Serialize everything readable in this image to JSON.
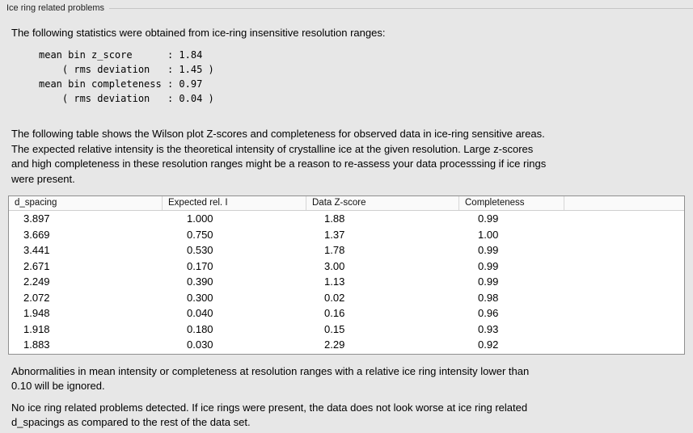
{
  "panel": {
    "title": "Ice ring related problems"
  },
  "intro": "The following statistics were obtained from ice-ring insensitive resolution ranges:",
  "stats_block": "mean bin z_score      : 1.84\n    ( rms deviation   : 1.45 )\nmean bin completeness : 0.97\n    ( rms deviation   : 0.04 )",
  "description": "The following table shows the Wilson plot Z-scores and completeness for observed data in ice-ring sensitive areas.\nThe expected relative intensity is the theoretical intensity of crystalline ice at the given resolution. Large z-scores\nand high completeness in these resolution ranges might be a reason to re-assess your data processsing if ice rings\nwere present.",
  "table": {
    "columns": [
      "d_spacing",
      "Expected rel. I",
      "Data Z-score",
      "Completeness"
    ],
    "rows": [
      [
        "3.897",
        "1.000",
        "1.88",
        "0.99"
      ],
      [
        "3.669",
        "0.750",
        "1.37",
        "1.00"
      ],
      [
        "3.441",
        "0.530",
        "1.78",
        "0.99"
      ],
      [
        "2.671",
        "0.170",
        "3.00",
        "0.99"
      ],
      [
        "2.249",
        "0.390",
        "1.13",
        "0.99"
      ],
      [
        "2.072",
        "0.300",
        "0.02",
        "0.98"
      ],
      [
        "1.948",
        "0.040",
        "0.16",
        "0.96"
      ],
      [
        "1.918",
        "0.180",
        "0.15",
        "0.93"
      ],
      [
        "1.883",
        "0.030",
        "2.29",
        "0.92"
      ]
    ]
  },
  "note_ignore": "Abnormalities in mean intensity or completeness at resolution ranges with a relative ice ring intensity lower than\n0.10 will be ignored.",
  "conclusion": "No ice ring related problems detected. If ice rings were present, the data does not look worse at ice ring related\nd_spacings as compared to the rest of the data set."
}
